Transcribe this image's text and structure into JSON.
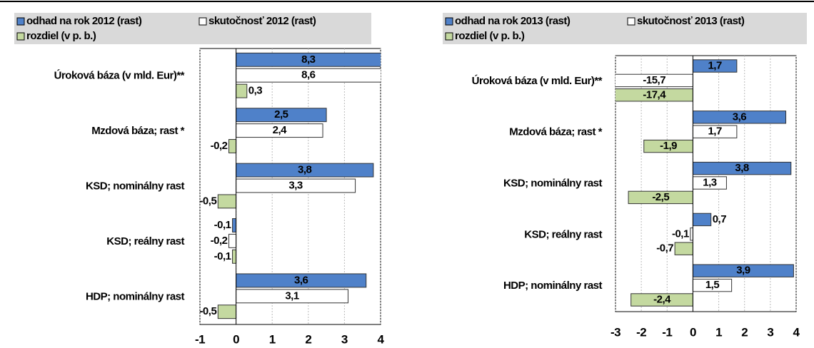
{
  "chart_data": [
    {
      "type": "bar",
      "orientation": "horizontal",
      "categories": [
        "Úroková báza (v mld. Eur)**",
        "Mzdová báza; rast *",
        "KSD; nominálny rast",
        "KSD; reálny rast",
        "HDP; nominálny rast"
      ],
      "series": [
        {
          "name": "odhad na rok 2012 (rast)",
          "color": "#4f81c9",
          "values": [
            8.3,
            2.5,
            3.8,
            -0.1,
            3.6
          ],
          "value_labels": [
            "8,3",
            "2,5",
            "3,8",
            "-0,1",
            "3,6"
          ]
        },
        {
          "name": "skutočnosť 2012 (rast)",
          "color": "#ffffff",
          "values": [
            8.6,
            2.4,
            3.3,
            -0.2,
            3.1
          ],
          "value_labels": [
            "8,6",
            "2,4",
            "3,3",
            "-0,2",
            "3,1"
          ]
        },
        {
          "name": "rozdiel (v p. b.)",
          "color": "#c4d9a0",
          "values": [
            0.3,
            -0.2,
            -0.5,
            -0.1,
            -0.5
          ],
          "value_labels": [
            "0,3",
            "-0,2",
            "-0,5",
            "-0,1",
            "-0,5"
          ]
        }
      ],
      "xlim": [
        -1,
        4
      ],
      "xticks": [
        -1,
        0,
        1,
        2,
        3,
        4
      ],
      "grid": true
    },
    {
      "type": "bar",
      "orientation": "horizontal",
      "categories": [
        "Úroková báza (v mld. Eur)**",
        "Mzdová báza; rast *",
        "KSD; nominálny rast",
        "KSD; reálny rast",
        "HDP; nominálny rast"
      ],
      "series": [
        {
          "name": "odhad na rok 2013 (rast)",
          "color": "#4f81c9",
          "values": [
            1.7,
            3.6,
            3.8,
            0.7,
            3.9
          ],
          "value_labels": [
            "1,7",
            "3,6",
            "3,8",
            "0,7",
            "3,9"
          ]
        },
        {
          "name": "skutočnosť 2013 (rast)",
          "color": "#ffffff",
          "values": [
            -15.7,
            1.7,
            1.3,
            -0.1,
            1.5
          ],
          "value_labels": [
            "-15,7",
            "1,7",
            "1,3",
            "-0,1",
            "1,5"
          ]
        },
        {
          "name": "rozdiel (v p. b.)",
          "color": "#c4d9a0",
          "values": [
            -17.4,
            -1.9,
            -2.5,
            -0.7,
            -2.4
          ],
          "value_labels": [
            "-17,4",
            "-1,9",
            "-2,5",
            "-0,7",
            "-2,4"
          ]
        }
      ],
      "xlim": [
        -3,
        4
      ],
      "xticks": [
        -3,
        -2,
        -1,
        0,
        1,
        2,
        3,
        4
      ],
      "grid": true
    }
  ]
}
